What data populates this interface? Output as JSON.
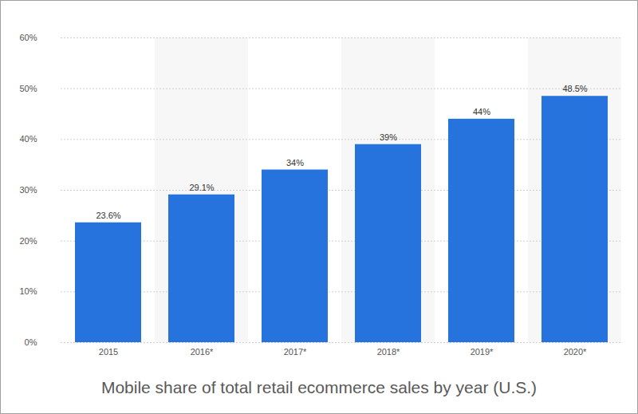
{
  "chart_data": {
    "type": "bar",
    "title": "Mobile share of total retail ecommerce sales by year (U.S.)",
    "categories": [
      "2015",
      "2016*",
      "2017*",
      "2018*",
      "2019*",
      "2020*"
    ],
    "values": [
      23.6,
      29.1,
      34,
      39,
      44,
      48.5
    ],
    "value_labels": [
      "23.6%",
      "29.1%",
      "34%",
      "39%",
      "44%",
      "48.5%"
    ],
    "color": "#2673dd",
    "ylim": [
      0,
      60
    ],
    "yticks": [
      {
        "value": 0,
        "label": "0%"
      },
      {
        "value": 10,
        "label": "10%"
      },
      {
        "value": 20,
        "label": "20%"
      },
      {
        "value": 30,
        "label": "30%"
      },
      {
        "value": 40,
        "label": "40%"
      },
      {
        "value": 50,
        "label": "50%"
      },
      {
        "value": 60,
        "label": "60%"
      }
    ],
    "grid": true,
    "data_labels": true
  }
}
